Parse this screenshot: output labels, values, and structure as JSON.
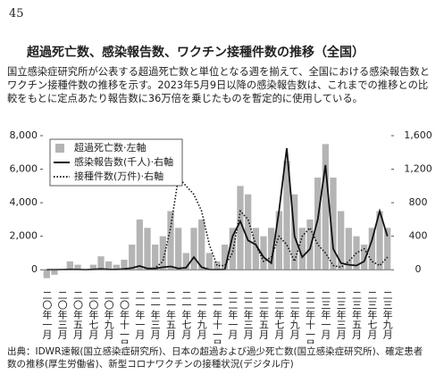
{
  "page_number": "45",
  "title": "超過死亡数、感染報告数、ワクチン接種件数の推移（全国）",
  "body": "国立感染症研究所が公表する超過死亡数と単位となる週を揃えて、全国における感染報告数とワクチン接種件数の推移を示す。2023年5月9日以降の感染報告数は、これまでの推移との比較をもとに定点あたり報告数に36万倍を乗じたものを暫定的に使用している。",
  "chart_data": {
    "type": "combo",
    "categories": [
      "二〇年一月",
      null,
      "二〇年三月",
      null,
      "二〇年五月",
      null,
      "二〇年七月",
      null,
      "二〇年九月",
      null,
      "二〇年十一月",
      null,
      "二一年一月",
      null,
      "二一年三月",
      null,
      "二一年五月",
      null,
      "二一年七月",
      null,
      "二一年九月",
      null,
      "二一年十一月",
      null,
      "二二年一月",
      null,
      "二二年三月",
      null,
      "二二年五月",
      null,
      "二二年七月",
      null,
      "二二年九月",
      null,
      "二二年十一月",
      null,
      "二三年一月",
      null,
      "二三年三月",
      null,
      "二三年五月",
      null,
      "二三年七月",
      null,
      "二三年九月"
    ],
    "series": [
      {
        "name": "超過死亡数·左軸",
        "type": "bar",
        "color": "#b4b4b4",
        "values": [
          -500,
          -300,
          0,
          500,
          300,
          0,
          300,
          800,
          500,
          300,
          600,
          1500,
          3000,
          2500,
          1500,
          2000,
          3500,
          2500,
          1000,
          2500,
          3000,
          1000,
          500,
          1500,
          2500,
          5000,
          4500,
          2500,
          2000,
          2500,
          3500,
          6500,
          4500,
          2500,
          3000,
          5500,
          7500,
          5500,
          3500,
          2500,
          2000,
          1500,
          2500,
          3500,
          2500
        ]
      },
      {
        "name": "感染報告数(千人)·右軸",
        "type": "line",
        "axis": "y2",
        "color": "#111111",
        "values": [
          0,
          0,
          2,
          5,
          3,
          0,
          5,
          10,
          4,
          3,
          10,
          20,
          45,
          15,
          15,
          30,
          40,
          15,
          25,
          150,
          30,
          2,
          1,
          3,
          400,
          580,
          350,
          300,
          150,
          80,
          700,
          1450,
          400,
          150,
          250,
          600,
          1250,
          250,
          80,
          60,
          50,
          100,
          350,
          700,
          400
        ]
      },
      {
        "name": "接種件数(万件)·右軸",
        "type": "dotted-line",
        "axis": "y2",
        "color": "#111111",
        "values": [
          null,
          null,
          null,
          null,
          null,
          null,
          null,
          null,
          null,
          null,
          null,
          null,
          null,
          5,
          20,
          100,
          500,
          1100,
          1000,
          900,
          700,
          300,
          50,
          50,
          200,
          700,
          600,
          300,
          100,
          150,
          400,
          300,
          100,
          400,
          500,
          300,
          200,
          50,
          30,
          100,
          200,
          250,
          100,
          50,
          150
        ]
      }
    ],
    "ylim": [
      -1000,
      8000
    ],
    "yticks": [
      0,
      {
        "value": 2000,
        "label": "2,000"
      },
      {
        "value": 4000,
        "label": "4,000"
      },
      {
        "value": 6000,
        "label": "6,000"
      },
      {
        "value": 8000,
        "label": "8,000"
      }
    ],
    "y2lim": [
      -200,
      1600
    ],
    "y2ticks": [
      0,
      400,
      800,
      {
        "value": 1200,
        "label": "1,200"
      },
      {
        "value": 1600,
        "label": "1,600"
      }
    ],
    "legend": "upper left"
  },
  "source": "出典：IDWR速報(国立感染症研究所)、日本の超過および過少死亡数(国立感染症研究所)、確定患者数の推移(厚生労働省)、新型コロナワクチンの接種状況(デジタル庁)"
}
